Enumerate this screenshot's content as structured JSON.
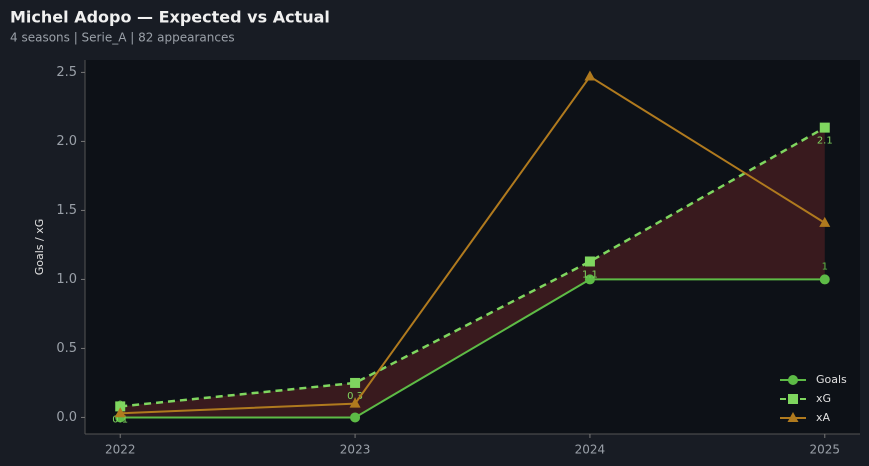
{
  "chart_data": {
    "type": "line",
    "title": "Michel Adopo — Expected vs Actual",
    "subtitle": "4 seasons | Serie_A | 82 appearances",
    "y_label": "Goals / xG",
    "x": [
      2022,
      2023,
      2024,
      2025
    ],
    "xlim": [
      2021.85,
      2025.15
    ],
    "xticks": [
      2022,
      2023,
      2024,
      2025
    ],
    "ylim": [
      -0.12,
      2.59
    ],
    "yticks": [
      {
        "value": 0,
        "label": "0.0"
      },
      0.5,
      {
        "value": 1,
        "label": "1.0"
      },
      1.5,
      {
        "value": 2,
        "label": "2.0"
      },
      2.5
    ],
    "legend": "lower right",
    "shade_between": [
      "Goals",
      "xG"
    ],
    "shade_color": "#8b2a2a",
    "series": [
      {
        "name": "Goals",
        "color": "#5dbb46",
        "marker": "circle",
        "dash": false,
        "values": [
          0,
          0,
          1,
          1
        ],
        "value_labels": [
          "0",
          null,
          null,
          "1"
        ]
      },
      {
        "name": "xG",
        "color": "#7fd65f",
        "marker": "square",
        "dash": true,
        "values": [
          0.08,
          0.25,
          1.13,
          2.1
        ],
        "value_labels": [
          "0.1",
          "0.3",
          "1.1",
          "2.1"
        ]
      },
      {
        "name": "xA",
        "color": "#b07a1e",
        "marker": "triangle",
        "dash": false,
        "values": [
          0.03,
          0.1,
          2.47,
          1.41
        ]
      }
    ]
  }
}
